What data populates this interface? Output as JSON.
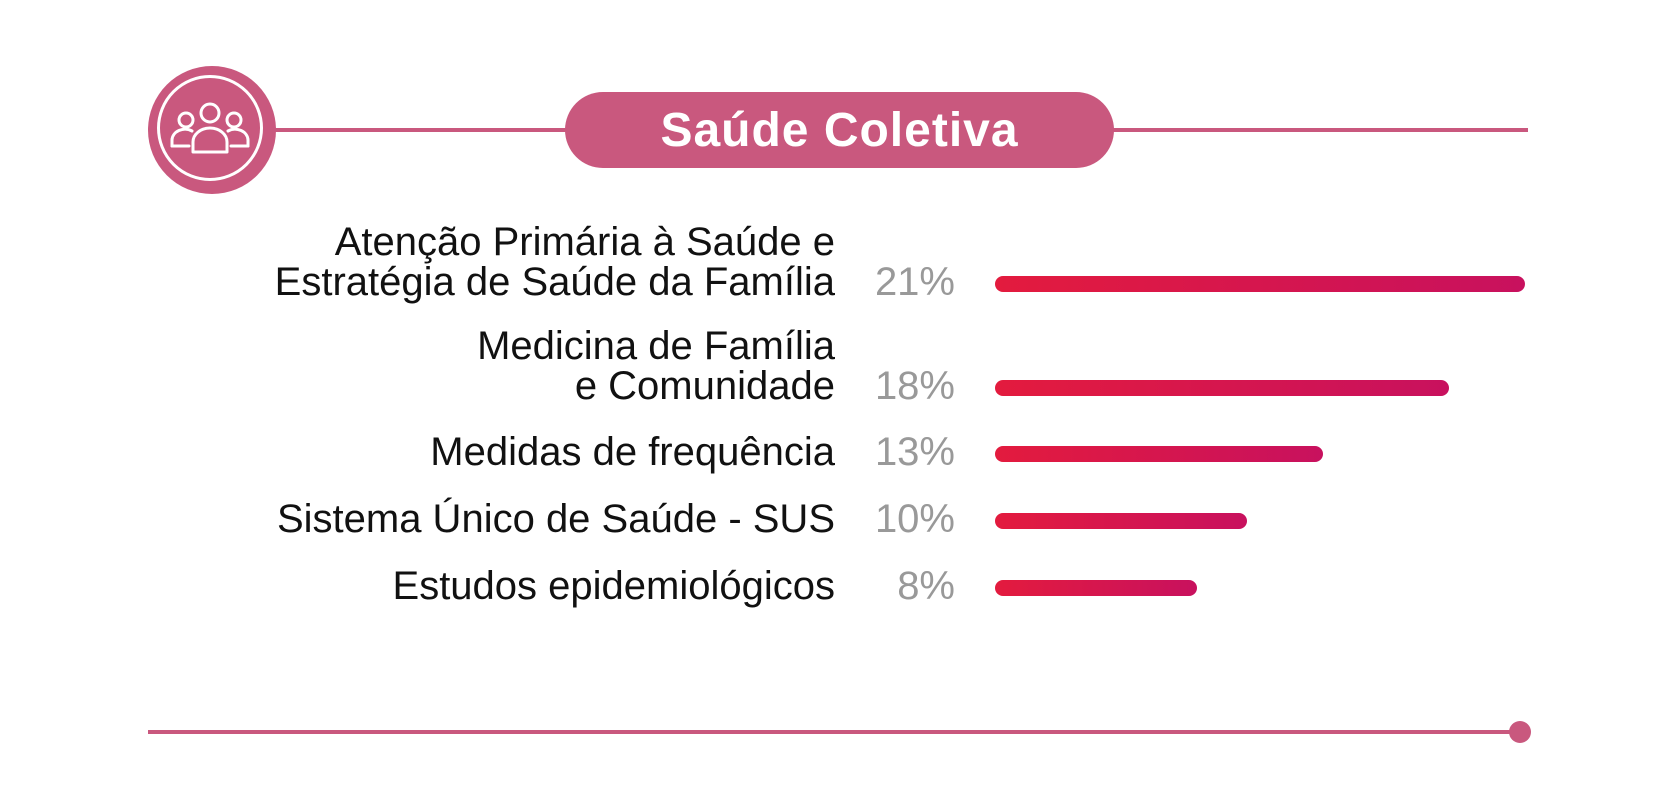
{
  "header": {
    "title": "Saúde Coletiva",
    "icon": "group-people-icon",
    "accent_color": "#c9587e"
  },
  "chart_data": {
    "type": "bar",
    "orientation": "horizontal",
    "categories": [
      [
        "Atenção Primária à Saúde e",
        "Estratégia de Saúde da Família"
      ],
      [
        "Medicina de Família",
        "e Comunidade"
      ],
      [
        "Medidas de frequência"
      ],
      [
        "Sistema Único de Saúde - SUS"
      ],
      [
        "Estudos epidemiológicos"
      ]
    ],
    "values": [
      21,
      18,
      13,
      10,
      8
    ],
    "value_labels": [
      "21%",
      "18%",
      "13%",
      "10%",
      "8%"
    ],
    "unit": "%",
    "bar_gradient": [
      "#e31b3e",
      "#c8115e"
    ],
    "label_color": "#111111",
    "value_color": "#999999"
  }
}
